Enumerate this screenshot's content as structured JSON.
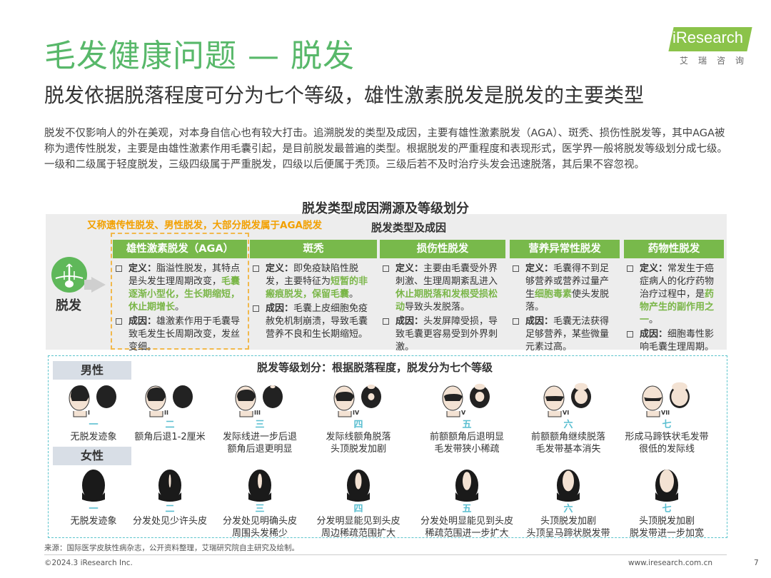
{
  "page": {
    "title": "毛发健康问题 — 脱发",
    "subtitle": "脱发依据脱落程度可分为七个等级，雄性激素脱发是脱发的主要类型",
    "intro": "脱发不仅影响人的外在美观，对本身自信心也有较大打击。追溯脱发的类型及成因，主要有雄性激素脱发（AGA）、斑秃、损伤性脱发等，其中AGA被称为遗传性脱发，主要是由雄性激素作用毛囊引起，是目前脱发最普遍的类型。根据脱发的严重程度和表现形式，医学界一般将脱发等级划分成七级。一级和二级属于轻度脱发，三级四级属于严重脱发，四级以后便属于秃顶。三级后若不及时治疗头发会迅速脱落，其后果不容忽视。"
  },
  "logo": {
    "text": "iResearch",
    "sub": "艾瑞咨询"
  },
  "figure": {
    "title": "脱发类型成因溯源及等级划分",
    "aga_note": "又称遗传性脱发、男性脱发，大部分脱发属于AGA脱发",
    "types_subtitle": "脱发类型及成因",
    "center_label": "脱发",
    "types": [
      {
        "name": "雄性激素脱发（AGA）",
        "def_label": "定义：",
        "def_pre": "脂溢性脱发，其特点是头发生理周期改变，",
        "def_hl": "毛囊逐渐小型化，生长期缩短，休止期增长",
        "def_post": "。",
        "cause_label": "成因：",
        "cause": "雄激素作用于毛囊导致毛发生长周期改变，发丝变细。"
      },
      {
        "name": "斑秃",
        "def_label": "定义：",
        "def_pre": "即免疫缺陷性脱发，主要特征为",
        "def_hl": "短暂的非瘢痕脱发，保留毛囊",
        "def_post": "。",
        "cause_label": "成因：",
        "cause": "毛囊上皮细胞免疫赦免机制崩溃，导致毛囊营养不良和生长期缩短。"
      },
      {
        "name": "损伤性脱发",
        "def_label": "定义：",
        "def_pre": "主要由毛囊受外界刺激、生理周期紊乱进入",
        "def_hl": "休止期脱落和发根受损松动",
        "def_post": "导致头发脱落。",
        "cause_label": "成因：",
        "cause": "头发屏障受损，导致毛囊更容易受到外界刺激。"
      },
      {
        "name": "营养异常性脱发",
        "def_label": "定义：",
        "def_pre": "毛囊得不到足够营养或营养过量产生",
        "def_hl": "细胞毒素",
        "def_post": "使头发脱落。",
        "cause_label": "成因：",
        "cause": "毛囊无法获得足够营养，某些微量元素过高。"
      },
      {
        "name": "药物性脱发",
        "def_label": "定义：",
        "def_pre": "常发生于癌症病人的化疗药物治疗过程中，是",
        "def_hl": "药物产生的副作用之一",
        "def_post": "。",
        "cause_label": "成因：",
        "cause": "细胞毒性影响毛囊生理周期。"
      }
    ],
    "grade_title": "脱发等级划分：根据脱落程度，脱发分为七个等级",
    "male_label": "男性",
    "female_label": "女性",
    "male_grades": [
      {
        "num": "一",
        "roman": "I",
        "desc": "无脱发迹象"
      },
      {
        "num": "二",
        "roman": "II",
        "desc": "额角后退1-2厘米"
      },
      {
        "num": "三",
        "roman": "III",
        "desc": "发际线进一步后退 额角后退更明显"
      },
      {
        "num": "四",
        "roman": "IV",
        "desc": "发际线额角脱落 头顶脱发加剧"
      },
      {
        "num": "五",
        "roman": "V",
        "desc": "前额额角后退明显 毛发带狭小稀疏"
      },
      {
        "num": "六",
        "roman": "VI",
        "desc": "前额额角继续脱落 毛发带基本消失"
      },
      {
        "num": "七",
        "roman": "VII",
        "desc": "形成马蹄铁状毛发带 很低的发际线"
      }
    ],
    "female_grades": [
      {
        "num": "一",
        "desc": "无脱发迹象"
      },
      {
        "num": "二",
        "desc": "分发处见少许头皮"
      },
      {
        "num": "三",
        "desc": "分发处见明确头皮 周围头发稀少"
      },
      {
        "num": "四",
        "desc": "分发明显能见到头皮 周边稀疏范围扩大"
      },
      {
        "num": "五",
        "desc": "分发处明显能见到头皮 稀疏范围进一步扩大"
      },
      {
        "num": "六",
        "desc": "头顶脱发加剧 头顶呈马蹄状脱发带"
      },
      {
        "num": "七",
        "desc": "头顶脱发加剧 脱发带进一步加宽"
      }
    ]
  },
  "footer": {
    "source": "来源：国际医学皮肤性病杂志，公开资料整理，艾瑞研究院自主研究及绘制。",
    "copyright": "©2024.3 iResearch Inc.",
    "website": "www.iresearch.com.cn",
    "page_number": "7"
  },
  "colors": {
    "title_green": "#58b86a",
    "header_green": "#78b94b",
    "highlight": "#7ab648",
    "note_orange": "#f2a000",
    "grade_blue": "#5bbfd1"
  }
}
